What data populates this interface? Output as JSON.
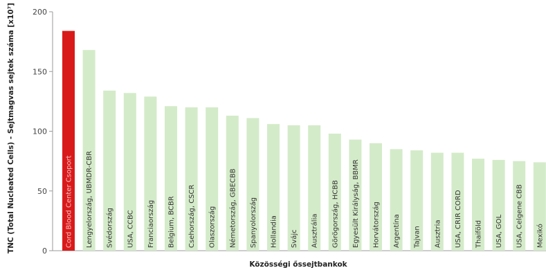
{
  "chart_data": {
    "type": "bar",
    "title": "",
    "xlabel": "Közösségi őssejtbankok",
    "ylabel": "TNC (Total Nucleated Cells) - Sejtmagvas sejtek száma [x10⁷]",
    "ylim": [
      0,
      200
    ],
    "yticks": [
      0,
      50,
      100,
      150,
      200
    ],
    "grid": false,
    "categories": [
      "Cord Blood Center Csoport",
      "Lengyelország, UBMDR-CBR",
      "Svédország",
      "USA, CCBC",
      "Franciaország",
      "Belgium, BCBR",
      "Csehország, CSCR",
      "Olaszország",
      "Németország, GBECBB",
      "Spanyolország",
      "Hollandia",
      "Svájc",
      "Ausztrália",
      "Görögország, HCBB",
      "Egyesült Királyság, BBMR",
      "Horvátország",
      "Argentína",
      "Tajvan",
      "Ausztria",
      "USA, CRIR CORD",
      "Thaiföld",
      "USA, GOL",
      "USA, Celgene CBB",
      "Mexikó"
    ],
    "values": [
      184,
      168,
      134,
      132,
      129,
      121,
      120,
      120,
      113,
      111,
      106,
      105,
      105,
      98,
      93,
      90,
      85,
      84,
      82,
      82,
      77,
      76,
      75,
      74
    ],
    "colors": {
      "highlight": "#d91a1a",
      "bar": "#d4ebc9",
      "highlight_label": "#f5c2c2",
      "bar_label": "#333333",
      "axis": "#9a9a9a"
    }
  }
}
